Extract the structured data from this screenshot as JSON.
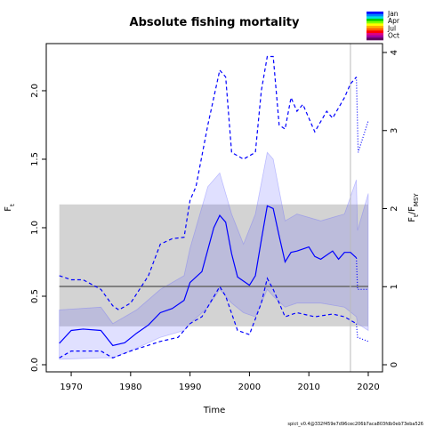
{
  "chart_data": {
    "type": "line",
    "title": "Absolute fishing mortality",
    "xlabel": "Time",
    "ylabel_parts": [
      "F",
      "t"
    ],
    "y2label_parts": [
      "F",
      "t",
      "/F",
      "MSY"
    ],
    "footnote": "spict_v0.4@332f459e7d96cec206b7aca803fdb0eb73eba526",
    "xlim": [
      1965.8,
      2022.4
    ],
    "xticks": [
      1970,
      1980,
      1990,
      2000,
      2010,
      2020
    ],
    "ylim": [
      -0.052,
      2.344
    ],
    "yticks": [
      {
        "value": 0,
        "label": "0.0"
      },
      0.5,
      {
        "value": 1,
        "label": "1.0"
      },
      1.5,
      {
        "value": 2,
        "label": "2.0"
      }
    ],
    "y2lim": [
      -0.091,
      4.114
    ],
    "y2ticks": [
      0,
      1,
      2,
      3,
      4
    ],
    "fmsy": {
      "value": 0.571,
      "lower": 0.28,
      "upper": 1.17,
      "x": [
        1968,
        2020
      ],
      "color": "#d3d3d3",
      "line_color": "#666666"
    },
    "vline": {
      "x": 2017,
      "color": "#bbbbbb"
    },
    "bands": [
      {
        "color": "#6464ff",
        "x": [
          1968,
          1975,
          1977,
          1981,
          1985,
          1989,
          1990,
          1993,
          1995,
          1997,
          1999,
          2001,
          2003,
          2004,
          2006,
          2008,
          2012,
          2016,
          2018,
          2018.2,
          2020
        ],
        "upper": [
          0.4,
          0.42,
          0.3,
          0.4,
          0.55,
          0.65,
          0.85,
          1.3,
          1.4,
          1.1,
          0.88,
          1.1,
          1.55,
          1.5,
          1.05,
          1.1,
          1.05,
          1.1,
          1.35,
          0.98,
          1.25
        ],
        "lower": [
          0.04,
          0.05,
          0.05,
          0.12,
          0.2,
          0.25,
          0.3,
          0.42,
          0.55,
          0.45,
          0.38,
          0.35,
          0.55,
          0.5,
          0.42,
          0.45,
          0.45,
          0.42,
          0.35,
          0.3,
          0.25
        ]
      }
    ],
    "series": [
      {
        "color": "#0000ff",
        "style": "solid",
        "x": [
          1968,
          1970,
          1972,
          1975,
          1977,
          1979,
          1981,
          1983,
          1985,
          1987,
          1989,
          1990,
          1992,
          1994,
          1995,
          1996,
          1997,
          1998,
          2000,
          2001,
          2002,
          2003,
          2004,
          2005,
          2006,
          2007,
          2008,
          2010,
          2011,
          2012,
          2014,
          2015,
          2016,
          2017,
          2018
        ],
        "values": [
          0.156,
          0.25,
          0.26,
          0.25,
          0.14,
          0.16,
          0.23,
          0.29,
          0.38,
          0.41,
          0.47,
          0.6,
          0.68,
          1.0,
          1.09,
          1.04,
          0.81,
          0.64,
          0.58,
          0.65,
          0.91,
          1.16,
          1.14,
          0.94,
          0.75,
          0.82,
          0.83,
          0.86,
          0.79,
          0.77,
          0.83,
          0.77,
          0.82,
          0.82,
          0.78
        ]
      },
      {
        "color": "#0000ff",
        "style": "dotted",
        "x": [
          2018,
          2018.2,
          2020
        ],
        "values": [
          0.78,
          0.55,
          0.55
        ]
      },
      {
        "color": "#0000ff",
        "style": "dashed",
        "x": [
          1968,
          1970,
          1972,
          1975,
          1977,
          1978,
          1980,
          1983,
          1985,
          1987,
          1989,
          1990,
          1991,
          1993,
          1995,
          1996,
          1997,
          1999,
          2001,
          2002,
          2003,
          2004,
          2005,
          2006,
          2007,
          2008,
          2009,
          2011,
          2013,
          2014,
          2016,
          2017,
          2018
        ],
        "values": [
          0.65,
          0.62,
          0.62,
          0.55,
          0.43,
          0.4,
          0.45,
          0.65,
          0.88,
          0.92,
          0.93,
          1.2,
          1.3,
          1.75,
          2.15,
          2.1,
          1.55,
          1.5,
          1.55,
          2.0,
          2.25,
          2.25,
          1.75,
          1.72,
          1.95,
          1.85,
          1.9,
          1.7,
          1.85,
          1.8,
          1.95,
          2.05,
          2.1
        ]
      },
      {
        "color": "#0000ff",
        "style": "dashed",
        "x": [
          1968,
          1970,
          1975,
          1977,
          1980,
          1985,
          1988,
          1990,
          1992,
          1995,
          1996,
          1998,
          2000,
          2002,
          2003,
          2004,
          2006,
          2008,
          2011,
          2014,
          2016,
          2018
        ],
        "values": [
          0.05,
          0.1,
          0.1,
          0.05,
          0.1,
          0.17,
          0.2,
          0.3,
          0.35,
          0.57,
          0.5,
          0.25,
          0.22,
          0.45,
          0.63,
          0.55,
          0.35,
          0.38,
          0.35,
          0.37,
          0.35,
          0.3
        ]
      },
      {
        "color": "#0000ff",
        "style": "dotted",
        "x": [
          2018,
          2018.3,
          2020
        ],
        "values": [
          2.1,
          1.55,
          1.78
        ]
      },
      {
        "color": "#0000ff",
        "style": "dotted",
        "x": [
          2018,
          2018.2,
          2020
        ],
        "values": [
          0.3,
          0.2,
          0.17
        ]
      }
    ],
    "season_legend": {
      "labels": [
        "Jan",
        "Apr",
        "Jul",
        "Oct"
      ],
      "colors": [
        "#0000ff",
        "#0080ff",
        "#00e0e0",
        "#00d000",
        "#80ff00",
        "#ffff00",
        "#ffb000",
        "#ff6000",
        "#ff0000",
        "#e00080",
        "#a000a0",
        "#600060"
      ]
    }
  }
}
